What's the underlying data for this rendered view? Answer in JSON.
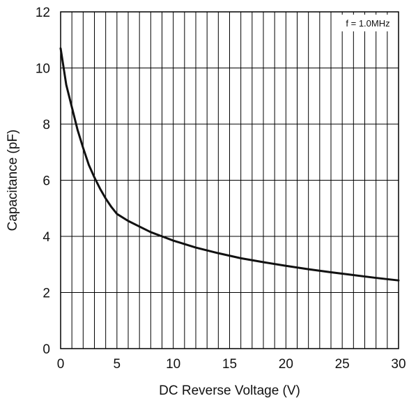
{
  "chart_data": {
    "type": "line",
    "title": "",
    "xlabel": "DC Reverse Voltage  (V)",
    "ylabel": "Capacitance  (pF)",
    "xlim": [
      0,
      30
    ],
    "ylim": [
      0,
      12
    ],
    "x_ticks": [
      0,
      5,
      10,
      15,
      20,
      25,
      30
    ],
    "y_ticks": [
      0,
      2,
      4,
      6,
      8,
      10,
      12
    ],
    "grid": {
      "vertical_every": 1,
      "horizontal_every": 2
    },
    "legend": "none",
    "annotation": {
      "text": "f = 1.0MHz",
      "position": "top-right"
    },
    "colors": {
      "line": "#111111",
      "grid": "#000000",
      "background": "#ffffff"
    },
    "series": [
      {
        "x": [
          0,
          0.5,
          1,
          1.5,
          2,
          2.5,
          3,
          3.5,
          4,
          4.5,
          5,
          6,
          7,
          8,
          9,
          10,
          12,
          14,
          16,
          18,
          20,
          22,
          24,
          26,
          28,
          30
        ],
        "y": [
          10.7,
          9.4,
          8.6,
          7.8,
          7.15,
          6.55,
          6.1,
          5.7,
          5.35,
          5.05,
          4.8,
          4.55,
          4.35,
          4.15,
          4.0,
          3.85,
          3.6,
          3.4,
          3.22,
          3.08,
          2.95,
          2.83,
          2.72,
          2.62,
          2.52,
          2.43
        ]
      }
    ]
  }
}
